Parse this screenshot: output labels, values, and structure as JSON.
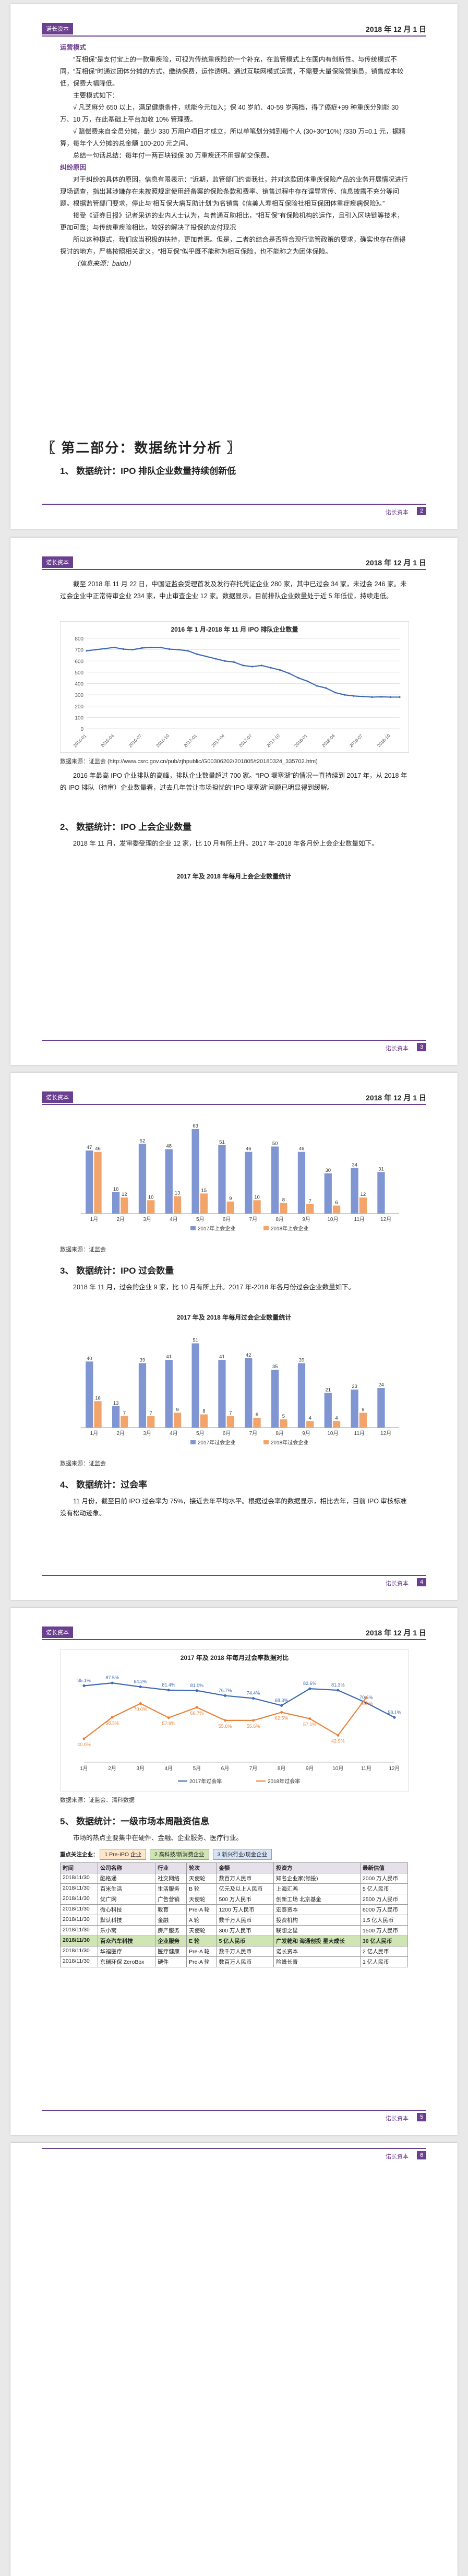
{
  "header": {
    "brand": "诺长资本",
    "date": "2018 年 12 月 1 日"
  },
  "footer": {
    "brand": "诺长资本"
  },
  "page_numbers": [
    "2",
    "3",
    "4",
    "5",
    "6"
  ],
  "page1": {
    "heading_ops": "运营模式",
    "p1": "“互相保”是支付宝上的一款重疾险，可视为传统重疾险的一个补充，在监管模式上在国内有创新性。与传统模式不同，“互相保”时通过团体分摊的方式，缴纳保费，运作透明。通过互联网模式运营，不需要大量保险营销员，销售成本较低，保费大幅降低。",
    "heading_rules": "主要模式如下：",
    "rule1": "√ 凡芝麻分 650 以上，满足健康条件，就能今元加入；保 40 岁前、40-59 岁两档，得了癌症+99 种重疾分别能 30 万、10 万，在此基础上平台加收 10% 管理费。",
    "rule2": "√ 赔偿费来自全员分摊，最少 330 万用户项目才成立，所以单笔划分摊到每个人 (30+30*10%) /330 万=0.1 元，据精算，每年个人分摊的总金额 100-200 元之间。",
    "p2": "总结一句话总结：每年付一两百块钱保 30 万重疾还不用提前交保费。",
    "heading_dispute": "纠纷原因",
    "p3": "对于纠纷的具体的原因，信息有限表示：“近期，监管部门约谈我社，并对这款团体重疾保险产品的业务开展情况进行现场调查，指出其涉嫌存在未按照规定使用经备案的保险条款和费率、销售过程中存在误导宣传、信息披露不充分等问题。根据监管部门要求，停止与‘相互保大病互助计划’为名销售《信美人寿相互保险社相互保团体重症疾病保险》。”",
    "p4": "接受《证券日报》记者采访的业内人士认为，与普通互助相比，“相互保”有保险机构的运作，且引入区块链等技术，更加可靠；与传统重疾险相比，较好的解决了投保的应付现况",
    "p5": "所以这种模式，我们应当积极的扶持，更加普惠。但是，二者的结合是否符合现行监管政策的要求，确实也存在值得探讨的地方，严格按照相关定义，“相互保”似乎既不能称为相互保险，也不能称之为团体保险。",
    "source": "（信息来源：baidu）",
    "part_title": "〖 第二部分：数据统计分析 〗",
    "h_ipo_queue": "1、  数据统计：IPO 排队企业数量持续创新低"
  },
  "page2": {
    "p1": "截至 2018 年 11 月 22 日，中国证监会受理首发及发行存托凭证企业 280 家，其中已过会 34 家，未过会 246 家。未过会企业中正常待审企业 234 家，中止审查企业 12 家。数据显示，目前排队企业数量处于近 5 年低位，持续走低。",
    "chart_title": "2016 年 1 月-2018 年 11 月 IPO 排队企业数量",
    "source1": "数据来源：证监会 (http://www.csrc.gov.cn/pub/zjhpublic/G00306202/201805/t20180324_335702.htm)",
    "p2": "2016 年最高 IPO 企业排队的高峰，排队企业数量超过 700 家。“IPO 堰塞湖”的情况一直持续到 2017 年，从 2018 年的 IPO 排队（待审）企业数量看，过去几年曾让市场担忧的“IPO 堰塞湖”问题已明显得到缓解。",
    "h2": "2、  数据统计：IPO 上会企业数量",
    "p3": "2018 年 11 月，发审委受理的企业 12 家，比 10 月有所上升。2017 年-2018 年各月份上会企业数量如下。",
    "chart2_title": "2017 年及 2018 年每月上会企业数量统计"
  },
  "page3": {
    "source": "数据来源：证监会",
    "h3": "3、  数据统计：IPO 过会数量",
    "p1": "2018 年 11 月，过会的企业 9 家，比 10 月有所上升。2017 年-2018 年各月份过会企业数量如下。",
    "chart_title": "2017 年及 2018 年每月过会企业数量统计",
    "h4": "4、  数据统计：过会率",
    "p2": "11 月份，截至目前 IPO 过会率为 75%，接近去年平均水平。根据过会率的数据显示，相比去年，目前 IPO 审核标准没有松动迹象。"
  },
  "page4": {
    "chart_title": "2017 年及 2018 年每月过会率数据对比",
    "source": "数据来源：证监会、清科数据",
    "h5": "5、  数据统计：一级市场本周融资信息",
    "p1": "市场的热点主要集中在硬件、金融、企业服务、医疗行业。",
    "legend_label": "重点关注企业：",
    "legend": [
      "1 Pre-IPO 企业",
      "2 高科技/新消费企业",
      "3 新兴行业/现金企业"
    ],
    "table": {
      "columns": [
        "时间",
        "公司名称",
        "行业",
        "轮次",
        "金额",
        "投资方",
        "最新估值"
      ],
      "rows": [
        {
          "cells": [
            "2018/11/30",
            "酷格通",
            "社交网络",
            "天使轮",
            "数百万人民币",
            "知名企业家(领投)",
            "2000 万人民币"
          ],
          "hl": false
        },
        {
          "cells": [
            "2018/11/30",
            "百米生活",
            "生活服务",
            "B 轮",
            "亿元及以上人民币",
            "上海汇鸿",
            "5 亿人民币"
          ],
          "hl": false
        },
        {
          "cells": [
            "2018/11/30",
            "优广网",
            "广告营销",
            "天使轮",
            "500 万人民币",
            "创新工场 北京基金",
            "2500 万人民币"
          ],
          "hl": false
        },
        {
          "cells": [
            "2018/11/30",
            "微心科技",
            "教育",
            "Pre-A 轮",
            "1200 万人民币",
            "宏泰资本",
            "6000 万人民币"
          ],
          "hl": false
        },
        {
          "cells": [
            "2018/11/30",
            "默认科技",
            "金融",
            "A 轮",
            "数千万人民币",
            "投资机构",
            "1.5 亿人民币"
          ],
          "hl": false
        },
        {
          "cells": [
            "2018/11/30",
            "乐小窝",
            "房产服务",
            "天使轮",
            "300 万人民币",
            "联想之星",
            "1500 万人民币"
          ],
          "hl": false
        },
        {
          "cells": [
            "2018/11/30",
            "百众汽车科技",
            "企业服务",
            "E 轮",
            "5 亿人民币",
            "广发乾和 海通创投 星大成长",
            "30 亿人民币"
          ],
          "hl": true
        },
        {
          "cells": [
            "2018/11/30",
            "华福医疗",
            "医疗健康",
            "Pre-A 轮",
            "数千万人民币",
            "诺长资本",
            "2 亿人民币"
          ],
          "hl": false
        },
        {
          "cells": [
            "2018/11/30",
            "东瑞环保 ZeroBox",
            "硬件",
            "Pre-A 轮",
            "数百万人民币",
            "险峰长青",
            "1 亿人民币"
          ],
          "hl": false
        }
      ]
    }
  },
  "chart_data": [
    {
      "type": "line",
      "title": "2016 年 1 月-2018 年 11 月 IPO 排队企业数量",
      "x": [
        "2016-01",
        "2016-02",
        "2016-03",
        "2016-04",
        "2016-05",
        "2016-06",
        "2016-07",
        "2016-08",
        "2016-09",
        "2016-10",
        "2016-11",
        "2016-12",
        "2017-01",
        "2017-02",
        "2017-03",
        "2017-04",
        "2017-05",
        "2017-06",
        "2017-07",
        "2017-08",
        "2017-09",
        "2017-10",
        "2017-11",
        "2017-12",
        "2018-01",
        "2018-02",
        "2018-03",
        "2018-04",
        "2018-05",
        "2018-06",
        "2018-07",
        "2018-08",
        "2018-09",
        "2018-10",
        "2018-11"
      ],
      "values": [
        690,
        700,
        710,
        720,
        705,
        700,
        715,
        720,
        720,
        705,
        700,
        690,
        660,
        640,
        620,
        600,
        590,
        560,
        550,
        560,
        540,
        520,
        490,
        450,
        420,
        380,
        360,
        320,
        300,
        290,
        285,
        280,
        282,
        280,
        280
      ],
      "ylim": [
        0,
        800
      ],
      "yticks": [
        0,
        100,
        200,
        300,
        400,
        500,
        600,
        700,
        800
      ],
      "xticks": [
        "2016-01",
        "2016-04",
        "2016-07",
        "2016-10",
        "2017-01",
        "2017-04",
        "2017-07",
        "2017-10",
        "2018-01",
        "2018-04",
        "2018-07",
        "2018-10"
      ],
      "colors": {
        "line": "#3c6ab2"
      }
    },
    {
      "type": "bar",
      "title": "",
      "categories": [
        "1月",
        "2月",
        "3月",
        "4月",
        "5月",
        "6月",
        "7月",
        "8月",
        "9月",
        "10月",
        "11月",
        "12月"
      ],
      "series": [
        {
          "name": "2017年上会企业",
          "values": [
            47,
            16,
            52,
            48,
            63,
            51,
            46,
            50,
            46,
            30,
            34,
            31
          ],
          "color": "#7f96d3"
        },
        {
          "name": "2018年上会企业",
          "values": [
            46,
            12,
            10,
            13,
            15,
            9,
            10,
            8,
            7,
            6,
            12,
            null
          ],
          "color": "#f2a46a"
        }
      ],
      "ylim": [
        0,
        70
      ],
      "legend": "bottom"
    },
    {
      "type": "bar",
      "title": "2017 年及 2018 年每月过会企业数量统计",
      "categories": [
        "1月",
        "2月",
        "3月",
        "4月",
        "5月",
        "6月",
        "7月",
        "8月",
        "9月",
        "10月",
        "11月",
        "12月"
      ],
      "series": [
        {
          "name": "2017年过会企业",
          "values": [
            40,
            13,
            39,
            41,
            51,
            41,
            42,
            35,
            39,
            21,
            23,
            24
          ],
          "color": "#7f96d3"
        },
        {
          "name": "2018年过会企业",
          "values": [
            16,
            7,
            7,
            9,
            8,
            7,
            6,
            5,
            4,
            4,
            9,
            null
          ],
          "color": "#f2a46a"
        }
      ],
      "ylim": [
        0,
        60
      ],
      "legend": "bottom"
    },
    {
      "type": "line",
      "title": "2017 年及 2018 年每月过会率数据对比",
      "categories": [
        "1月",
        "2月",
        "3月",
        "4月",
        "5月",
        "6月",
        "7月",
        "8月",
        "9月",
        "10月",
        "11月",
        "12月"
      ],
      "series": [
        {
          "name": "2017年过会率",
          "values": [
            85.1,
            87.5,
            84.2,
            81.4,
            81.0,
            76.7,
            74.4,
            68.3,
            82.6,
            81.3,
            70.6,
            58.1
          ],
          "color": "#3c6ab2"
        },
        {
          "name": "2018年过会率",
          "values": [
            40.0,
            58.3,
            70.0,
            57.9,
            66.7,
            55.6,
            55.6,
            62.5,
            57.1,
            42.9,
            75.0,
            null
          ],
          "color": "#e8823a"
        }
      ],
      "ylim": [
        20,
        100
      ],
      "legend": "bottom"
    }
  ]
}
